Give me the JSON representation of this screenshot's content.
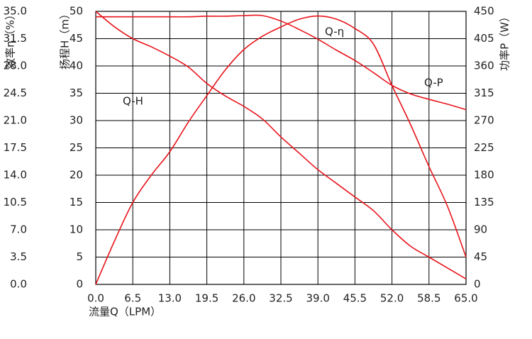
{
  "chart_data": {
    "type": "line",
    "x_label": "流量Q（LPM）",
    "y_label": "扬程H（m）",
    "y2_label": "功率P（W）",
    "y3_label": "效率η（%）",
    "x": [
      0,
      3.25,
      6.5,
      9.75,
      13,
      16.25,
      19.5,
      22.75,
      26,
      29.25,
      32.5,
      35.75,
      39,
      42.25,
      45.5,
      48.75,
      52,
      55.25,
      58.5,
      61.75,
      65
    ],
    "xlim": [
      0,
      65
    ],
    "xticks": [
      {
        "value": 0,
        "label": "0.0"
      },
      {
        "value": 6.5,
        "label": "6.5"
      },
      {
        "value": 13,
        "label": "13.0"
      },
      {
        "value": 19.5,
        "label": "19.5"
      },
      {
        "value": 26,
        "label": "26.0"
      },
      {
        "value": 32.5,
        "label": "32.5"
      },
      {
        "value": 39,
        "label": "39.0"
      },
      {
        "value": 45.5,
        "label": "45.5"
      },
      {
        "value": 52,
        "label": "52.0"
      },
      {
        "value": 58.5,
        "label": "58.5"
      },
      {
        "value": 65,
        "label": "65.0"
      }
    ],
    "ylim": [
      0,
      50
    ],
    "yticks": [
      0,
      5,
      10,
      15,
      20,
      25,
      30,
      35,
      40,
      45,
      50
    ],
    "y2lim": [
      0,
      450
    ],
    "y2ticks": [
      0,
      45,
      90,
      135,
      180,
      225,
      270,
      315,
      360,
      405,
      450
    ],
    "y3lim": [
      0,
      35
    ],
    "y3ticks": [
      {
        "value": 0,
        "label": "0.0"
      },
      {
        "value": 3.5,
        "label": "3.5"
      },
      {
        "value": 7,
        "label": "7.0"
      },
      {
        "value": 10.5,
        "label": "10.5"
      },
      {
        "value": 14,
        "label": "14.0"
      },
      {
        "value": 17.5,
        "label": "17.5"
      },
      {
        "value": 21,
        "label": "21.0"
      },
      {
        "value": 24.5,
        "label": "24.5"
      },
      {
        "value": 28,
        "label": "28.0"
      },
      {
        "value": 31.5,
        "label": "31.5"
      },
      {
        "value": 35,
        "label": "35.0"
      }
    ],
    "grid": true,
    "series": [
      {
        "name": "Q-H",
        "color": "#e8141b",
        "axis": "y",
        "values": [
          50,
          47.2,
          45,
          43.5,
          41.8,
          39.8,
          36.8,
          34.5,
          32.6,
          30.3,
          27,
          24,
          21,
          18.5,
          16,
          13.5,
          10,
          7,
          5,
          3,
          1
        ]
      },
      {
        "name": "Q-η",
        "color": "#e8141b",
        "axis": "y3",
        "values": [
          0,
          5.5,
          10.5,
          14,
          17,
          20.8,
          24.2,
          27.5,
          30.1,
          31.8,
          33,
          34,
          34.4,
          34,
          32.8,
          30.8,
          25.5,
          20.5,
          15.1,
          10,
          3.5
        ]
      },
      {
        "name": "Q-P",
        "color": "#e8141b",
        "axis": "y2",
        "values": [
          441,
          441,
          441,
          441,
          441,
          441,
          442,
          442,
          443,
          443,
          434,
          420,
          404,
          386,
          369,
          349,
          328,
          314,
          305,
          297,
          288
        ]
      }
    ]
  }
}
